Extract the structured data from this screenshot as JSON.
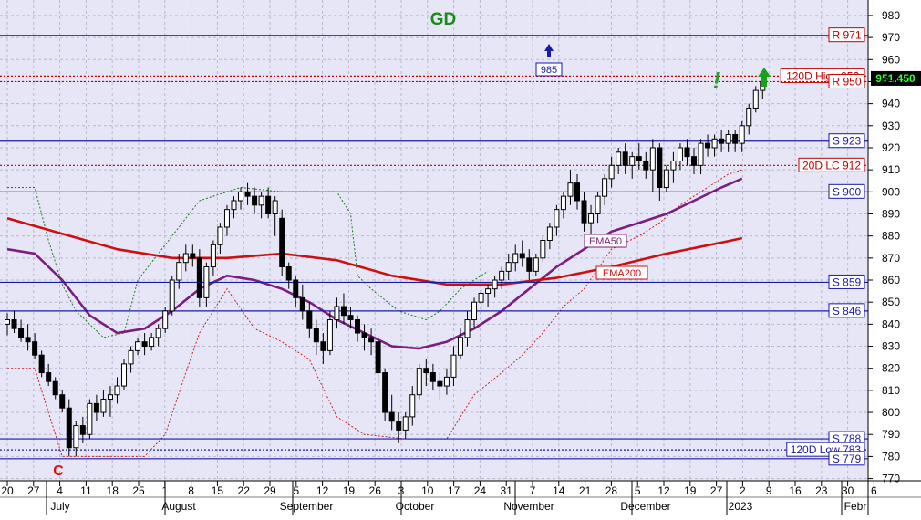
{
  "chart_data": {
    "type": "candlestick",
    "title": "GD",
    "ylim": [
      770,
      985
    ],
    "y_ticks": [
      770,
      780,
      790,
      800,
      810,
      820,
      830,
      840,
      850,
      860,
      870,
      880,
      890,
      900,
      910,
      920,
      930,
      940,
      950,
      960,
      970,
      980
    ],
    "x_day_ticks": [
      "20",
      "27",
      "4",
      "11",
      "18",
      "25",
      "1",
      "8",
      "15",
      "22",
      "29",
      "5",
      "12",
      "19",
      "26",
      "3",
      "10",
      "17",
      "24",
      "31",
      "7",
      "14",
      "21",
      "28",
      "5",
      "12",
      "19",
      "27",
      "2",
      "9",
      "16",
      "23",
      "30",
      "6"
    ],
    "x_month_labels": [
      "July",
      "August",
      "September",
      "October",
      "November",
      "December",
      "2023",
      "Febr"
    ],
    "last_price": "951.450",
    "levels": [
      {
        "label": "R 971",
        "value": 971,
        "color": "#c00000",
        "style": "solid"
      },
      {
        "label": "120D High 952",
        "value": 952.5,
        "color": "#c00000",
        "style": "dotted"
      },
      {
        "label": "R 950",
        "value": 950,
        "color": "#c00000",
        "style": "dotted"
      },
      {
        "label": "S 923",
        "value": 923,
        "color": "#1a1aa8",
        "style": "solid"
      },
      {
        "label": "20D LC 912",
        "value": 912,
        "color": "#c00000",
        "style": "dotted"
      },
      {
        "label": "S 900",
        "value": 900,
        "color": "#1a1aa8",
        "style": "solid"
      },
      {
        "label": "S 859",
        "value": 859,
        "color": "#1a1aa8",
        "style": "solid"
      },
      {
        "label": "S 846",
        "value": 846,
        "color": "#1a1aa8",
        "style": "solid"
      },
      {
        "label": "S 788",
        "value": 788,
        "color": "#1a1aa8",
        "style": "solid"
      },
      {
        "label": "120D Low 783",
        "value": 783,
        "color": "#1a1aa8",
        "style": "dotted"
      },
      {
        "label": "S 779",
        "value": 779,
        "color": "#1a1aa8",
        "style": "solid"
      }
    ],
    "annotations": [
      {
        "label": "985",
        "value": 985
      },
      {
        "label": "EMA50"
      },
      {
        "label": "EMA200"
      },
      {
        "label": "C"
      },
      {
        "label": "!"
      }
    ],
    "candles": [
      [
        840,
        845,
        835,
        842
      ],
      [
        842,
        846,
        836,
        838
      ],
      [
        838,
        842,
        832,
        834
      ],
      [
        834,
        840,
        828,
        832
      ],
      [
        832,
        836,
        824,
        826
      ],
      [
        826,
        828,
        816,
        818
      ],
      [
        818,
        822,
        812,
        814
      ],
      [
        814,
        816,
        806,
        808
      ],
      [
        808,
        810,
        800,
        802
      ],
      [
        802,
        806,
        780,
        784
      ],
      [
        784,
        796,
        780,
        794
      ],
      [
        794,
        798,
        786,
        790
      ],
      [
        790,
        806,
        788,
        804
      ],
      [
        804,
        808,
        796,
        800
      ],
      [
        800,
        810,
        798,
        806
      ],
      [
        806,
        812,
        798,
        808
      ],
      [
        808,
        816,
        804,
        812
      ],
      [
        812,
        824,
        810,
        822
      ],
      [
        822,
        830,
        818,
        828
      ],
      [
        828,
        834,
        826,
        832
      ],
      [
        832,
        836,
        826,
        830
      ],
      [
        830,
        836,
        828,
        834
      ],
      [
        834,
        840,
        830,
        838
      ],
      [
        838,
        848,
        836,
        846
      ],
      [
        846,
        862,
        844,
        860
      ],
      [
        860,
        872,
        856,
        868
      ],
      [
        868,
        876,
        864,
        872
      ],
      [
        872,
        876,
        866,
        870
      ],
      [
        870,
        874,
        848,
        852
      ],
      [
        852,
        868,
        848,
        866
      ],
      [
        866,
        878,
        862,
        876
      ],
      [
        876,
        886,
        872,
        884
      ],
      [
        884,
        894,
        880,
        892
      ],
      [
        892,
        898,
        888,
        896
      ],
      [
        896,
        902,
        892,
        900
      ],
      [
        900,
        904,
        894,
        898
      ],
      [
        898,
        902,
        890,
        894
      ],
      [
        894,
        900,
        888,
        898
      ],
      [
        898,
        902,
        888,
        890
      ],
      [
        890,
        898,
        880,
        896
      ],
      [
        888,
        892,
        862,
        866
      ],
      [
        866,
        868,
        856,
        860
      ],
      [
        860,
        862,
        848,
        852
      ],
      [
        852,
        858,
        842,
        846
      ],
      [
        846,
        850,
        834,
        838
      ],
      [
        838,
        842,
        826,
        832
      ],
      [
        832,
        836,
        822,
        828
      ],
      [
        828,
        846,
        826,
        842
      ],
      [
        842,
        852,
        838,
        848
      ],
      [
        848,
        854,
        840,
        844
      ],
      [
        844,
        848,
        838,
        842
      ],
      [
        842,
        844,
        832,
        836
      ],
      [
        836,
        840,
        828,
        834
      ],
      [
        834,
        838,
        826,
        832
      ],
      [
        832,
        834,
        812,
        818
      ],
      [
        818,
        820,
        796,
        800
      ],
      [
        800,
        808,
        792,
        796
      ],
      [
        796,
        800,
        786,
        792
      ],
      [
        792,
        800,
        788,
        798
      ],
      [
        798,
        812,
        794,
        808
      ],
      [
        808,
        822,
        806,
        820
      ],
      [
        820,
        824,
        812,
        818
      ],
      [
        818,
        822,
        810,
        814
      ],
      [
        814,
        818,
        806,
        812
      ],
      [
        812,
        820,
        808,
        816
      ],
      [
        816,
        830,
        812,
        826
      ],
      [
        826,
        838,
        824,
        834
      ],
      [
        834,
        846,
        830,
        842
      ],
      [
        842,
        852,
        838,
        850
      ],
      [
        850,
        856,
        846,
        854
      ],
      [
        854,
        858,
        848,
        856
      ],
      [
        856,
        862,
        852,
        860
      ],
      [
        860,
        866,
        856,
        864
      ],
      [
        864,
        872,
        860,
        868
      ],
      [
        868,
        876,
        864,
        872
      ],
      [
        872,
        878,
        866,
        870
      ],
      [
        870,
        874,
        860,
        864
      ],
      [
        864,
        872,
        862,
        870
      ],
      [
        870,
        880,
        868,
        878
      ],
      [
        878,
        886,
        874,
        884
      ],
      [
        884,
        894,
        880,
        892
      ],
      [
        892,
        900,
        888,
        898
      ],
      [
        898,
        910,
        894,
        904
      ],
      [
        904,
        908,
        892,
        896
      ],
      [
        896,
        900,
        882,
        886
      ],
      [
        886,
        894,
        880,
        890
      ],
      [
        890,
        900,
        886,
        898
      ],
      [
        898,
        908,
        894,
        906
      ],
      [
        906,
        916,
        902,
        912
      ],
      [
        912,
        920,
        908,
        918
      ],
      [
        918,
        922,
        908,
        912
      ],
      [
        912,
        918,
        906,
        916
      ],
      [
        916,
        922,
        910,
        914
      ],
      [
        914,
        918,
        906,
        910
      ],
      [
        910,
        924,
        900,
        920
      ],
      [
        920,
        922,
        896,
        902
      ],
      [
        902,
        912,
        900,
        910
      ],
      [
        910,
        918,
        904,
        914
      ],
      [
        914,
        922,
        910,
        920
      ],
      [
        920,
        924,
        912,
        916
      ],
      [
        916,
        920,
        908,
        912
      ],
      [
        912,
        924,
        908,
        922
      ],
      [
        922,
        926,
        916,
        920
      ],
      [
        920,
        926,
        916,
        924
      ],
      [
        924,
        928,
        918,
        922
      ],
      [
        922,
        928,
        918,
        926
      ],
      [
        926,
        928,
        918,
        922
      ],
      [
        922,
        932,
        918,
        930
      ],
      [
        930,
        940,
        926,
        938
      ],
      [
        938,
        948,
        936,
        946
      ],
      [
        946,
        952,
        942,
        950
      ]
    ],
    "series": [
      {
        "name": "EMA50",
        "color": "#7b1f7f",
        "points": [
          [
            0,
            874
          ],
          [
            4,
            872
          ],
          [
            8,
            860
          ],
          [
            12,
            844
          ],
          [
            16,
            836
          ],
          [
            20,
            838
          ],
          [
            24,
            846
          ],
          [
            28,
            856
          ],
          [
            32,
            862
          ],
          [
            36,
            860
          ],
          [
            40,
            856
          ],
          [
            44,
            850
          ],
          [
            48,
            842
          ],
          [
            52,
            836
          ],
          [
            56,
            830
          ],
          [
            60,
            829
          ],
          [
            64,
            832
          ],
          [
            68,
            838
          ],
          [
            72,
            846
          ],
          [
            76,
            856
          ],
          [
            80,
            866
          ],
          [
            84,
            874
          ],
          [
            88,
            882
          ],
          [
            92,
            886
          ],
          [
            96,
            890
          ],
          [
            100,
            896
          ],
          [
            104,
            902
          ],
          [
            107,
            906
          ]
        ]
      },
      {
        "name": "EMA200",
        "color": "#cc1010",
        "points": [
          [
            0,
            888
          ],
          [
            8,
            881
          ],
          [
            16,
            874
          ],
          [
            24,
            870
          ],
          [
            32,
            870
          ],
          [
            40,
            872
          ],
          [
            48,
            869
          ],
          [
            56,
            862
          ],
          [
            64,
            858
          ],
          [
            72,
            858
          ],
          [
            80,
            861
          ],
          [
            88,
            866
          ],
          [
            96,
            872
          ],
          [
            104,
            877
          ],
          [
            107,
            879
          ]
        ]
      },
      {
        "name": "Upper band",
        "color": "#1a7a1a",
        "style": "dotted",
        "points": [
          [
            0,
            902
          ],
          [
            4,
            902
          ],
          [
            6,
            878
          ],
          [
            8,
            858
          ],
          [
            10,
            846
          ],
          [
            14,
            834
          ],
          [
            17,
            836
          ],
          [
            19,
            860
          ],
          [
            24,
            880
          ],
          [
            28,
            896
          ],
          [
            34,
            902
          ],
          [
            40,
            900
          ],
          [
            44,
            900
          ],
          [
            48,
            900
          ],
          [
            50,
            890
          ],
          [
            51,
            862
          ],
          [
            53,
            856
          ],
          [
            57,
            846
          ],
          [
            61,
            842
          ],
          [
            63,
            846
          ],
          [
            66,
            856
          ],
          [
            70,
            864
          ]
        ]
      },
      {
        "name": "Lower band",
        "color": "#cc2020",
        "style": "dotted",
        "points": [
          [
            0,
            820
          ],
          [
            4,
            820
          ],
          [
            8,
            780
          ],
          [
            12,
            780
          ],
          [
            20,
            780
          ],
          [
            23,
            790
          ],
          [
            26,
            818
          ],
          [
            28,
            836
          ],
          [
            32,
            856
          ],
          [
            36,
            838
          ],
          [
            40,
            832
          ],
          [
            44,
            824
          ],
          [
            48,
            798
          ],
          [
            52,
            790
          ],
          [
            58,
            788
          ],
          [
            64,
            788
          ],
          [
            68,
            808
          ],
          [
            72,
            818
          ],
          [
            75,
            826
          ],
          [
            78,
            836
          ],
          [
            81,
            848
          ],
          [
            84,
            856
          ],
          [
            88,
            874
          ],
          [
            92,
            880
          ],
          [
            95,
            886
          ],
          [
            98,
            894
          ],
          [
            101,
            900
          ],
          [
            103,
            904
          ],
          [
            105,
            908
          ],
          [
            107,
            910
          ]
        ]
      }
    ]
  }
}
